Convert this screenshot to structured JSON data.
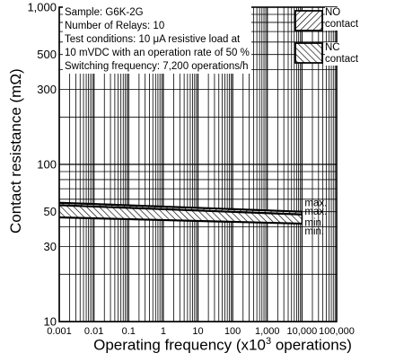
{
  "chart_data": {
    "type": "line",
    "xscale": "log",
    "yscale": "log",
    "xlim": [
      0.001,
      100000
    ],
    "ylim": [
      10,
      1000
    ],
    "xticks": [
      "0.001",
      "0.01",
      "0.1",
      "1",
      "10",
      "100",
      "1,000",
      "10,000",
      "100,000"
    ],
    "yticks": [
      {
        "value": 10,
        "label": "10"
      },
      {
        "value": 30,
        "label": "30"
      },
      {
        "value": 50,
        "label": "50"
      },
      {
        "value": 100,
        "label": "100"
      },
      {
        "value": 300,
        "label": "300"
      },
      {
        "value": 500,
        "label": "500"
      },
      {
        "value": 1000,
        "label": "1,000"
      }
    ],
    "ylabel": "Contact resistance (mΩ)",
    "xlabel_main": "Operating frequency (x10",
    "xlabel_sup": "3",
    "xlabel_end": " operations)",
    "grid": true,
    "legend_position": "top-right",
    "legend": [
      {
        "label_line1": "NO",
        "label_line2": "contact",
        "pattern": "forward-hatch"
      },
      {
        "label_line1": "NC",
        "label_line2": "contact",
        "pattern": "backward-hatch"
      }
    ],
    "annotation_lines": [
      "Sample: G6K-2G",
      "Number of Relays: 10",
      "Test conditions: 10 μA resistive load at",
      "10 mVDC with an operation rate of 50 %",
      "Switching frequency: 7,200 operations/h"
    ],
    "bands": [
      {
        "name": "NO contact",
        "pattern": "forward-hatch",
        "x": [
          0.001,
          10000
        ],
        "max": [
          57,
          50
        ],
        "min": [
          50,
          44
        ]
      },
      {
        "name": "NC contact",
        "pattern": "backward-hatch",
        "x": [
          0.001,
          10000
        ],
        "max": [
          55,
          48
        ],
        "min": [
          46,
          42
        ]
      }
    ],
    "end_labels": [
      "max.",
      "max.",
      "min.",
      "min."
    ]
  }
}
